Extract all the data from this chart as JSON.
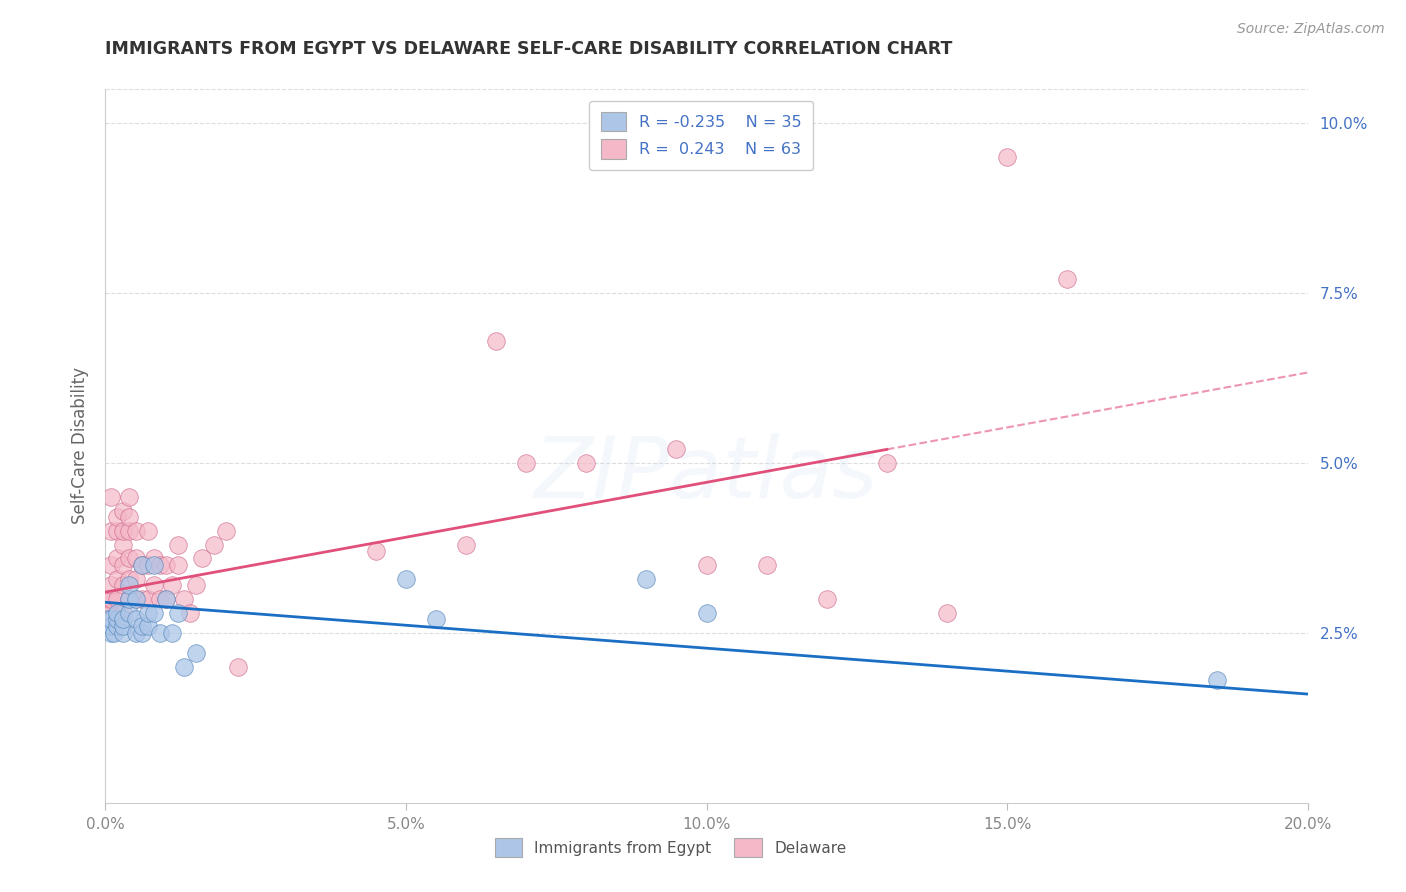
{
  "title": "IMMIGRANTS FROM EGYPT VS DELAWARE SELF-CARE DISABILITY CORRELATION CHART",
  "source": "Source: ZipAtlas.com",
  "ylabel": "Self-Care Disability",
  "watermark": "ZIPatlas",
  "legend_blue_r": "-0.235",
  "legend_blue_n": "35",
  "legend_pink_r": "0.243",
  "legend_pink_n": "63",
  "legend_label_blue": "Immigrants from Egypt",
  "legend_label_pink": "Delaware",
  "xlim": [
    0.0,
    0.2
  ],
  "ylim": [
    0.0,
    0.105
  ],
  "xticks": [
    0.0,
    0.05,
    0.1,
    0.15,
    0.2
  ],
  "yticks_right": [
    0.025,
    0.05,
    0.075,
    0.1
  ],
  "ytick_labels_right": [
    "2.5%",
    "5.0%",
    "7.5%",
    "10.0%"
  ],
  "xtick_labels": [
    "0.0%",
    "5.0%",
    "10.0%",
    "15.0%",
    "20.0%"
  ],
  "blue_scatter_x": [
    0.0005,
    0.001,
    0.001,
    0.001,
    0.0015,
    0.002,
    0.002,
    0.002,
    0.003,
    0.003,
    0.003,
    0.004,
    0.004,
    0.004,
    0.005,
    0.005,
    0.005,
    0.006,
    0.006,
    0.006,
    0.007,
    0.007,
    0.008,
    0.008,
    0.009,
    0.01,
    0.011,
    0.012,
    0.013,
    0.015,
    0.05,
    0.055,
    0.09,
    0.1,
    0.185
  ],
  "blue_scatter_y": [
    0.027,
    0.025,
    0.026,
    0.027,
    0.025,
    0.026,
    0.027,
    0.028,
    0.025,
    0.026,
    0.027,
    0.028,
    0.03,
    0.032,
    0.025,
    0.027,
    0.03,
    0.025,
    0.026,
    0.035,
    0.026,
    0.028,
    0.035,
    0.028,
    0.025,
    0.03,
    0.025,
    0.028,
    0.02,
    0.022,
    0.033,
    0.027,
    0.033,
    0.028,
    0.018
  ],
  "pink_scatter_x": [
    0.0003,
    0.0005,
    0.001,
    0.001,
    0.001,
    0.001,
    0.001,
    0.001,
    0.002,
    0.002,
    0.002,
    0.002,
    0.002,
    0.003,
    0.003,
    0.003,
    0.003,
    0.003,
    0.003,
    0.004,
    0.004,
    0.004,
    0.004,
    0.004,
    0.004,
    0.005,
    0.005,
    0.005,
    0.005,
    0.006,
    0.006,
    0.007,
    0.007,
    0.007,
    0.008,
    0.008,
    0.009,
    0.009,
    0.01,
    0.01,
    0.011,
    0.012,
    0.012,
    0.013,
    0.014,
    0.015,
    0.016,
    0.018,
    0.02,
    0.022,
    0.045,
    0.06,
    0.065,
    0.07,
    0.08,
    0.095,
    0.1,
    0.11,
    0.12,
    0.13,
    0.14,
    0.15,
    0.16
  ],
  "pink_scatter_y": [
    0.028,
    0.03,
    0.028,
    0.03,
    0.032,
    0.035,
    0.04,
    0.045,
    0.03,
    0.033,
    0.036,
    0.04,
    0.042,
    0.028,
    0.032,
    0.035,
    0.038,
    0.04,
    0.043,
    0.03,
    0.033,
    0.036,
    0.04,
    0.042,
    0.045,
    0.03,
    0.033,
    0.036,
    0.04,
    0.03,
    0.035,
    0.03,
    0.035,
    0.04,
    0.032,
    0.036,
    0.03,
    0.035,
    0.03,
    0.035,
    0.032,
    0.035,
    0.038,
    0.03,
    0.028,
    0.032,
    0.036,
    0.038,
    0.04,
    0.02,
    0.037,
    0.038,
    0.068,
    0.05,
    0.05,
    0.052,
    0.035,
    0.035,
    0.03,
    0.05,
    0.028,
    0.095,
    0.077
  ],
  "blue_color": "#adc6e8",
  "pink_color": "#f4b8c8",
  "blue_edge_color": "#5588bb",
  "pink_edge_color": "#cc6688",
  "blue_line_color": "#1a6fc4",
  "pink_line_color": "#e0507a",
  "background_color": "#ffffff",
  "grid_color": "#dddddd",
  "title_color": "#333333",
  "right_axis_color": "#4472c4",
  "source_color": "#999999",
  "ylabel_color": "#666666",
  "xtick_color": "#888888",
  "watermark_alpha": 0.18
}
